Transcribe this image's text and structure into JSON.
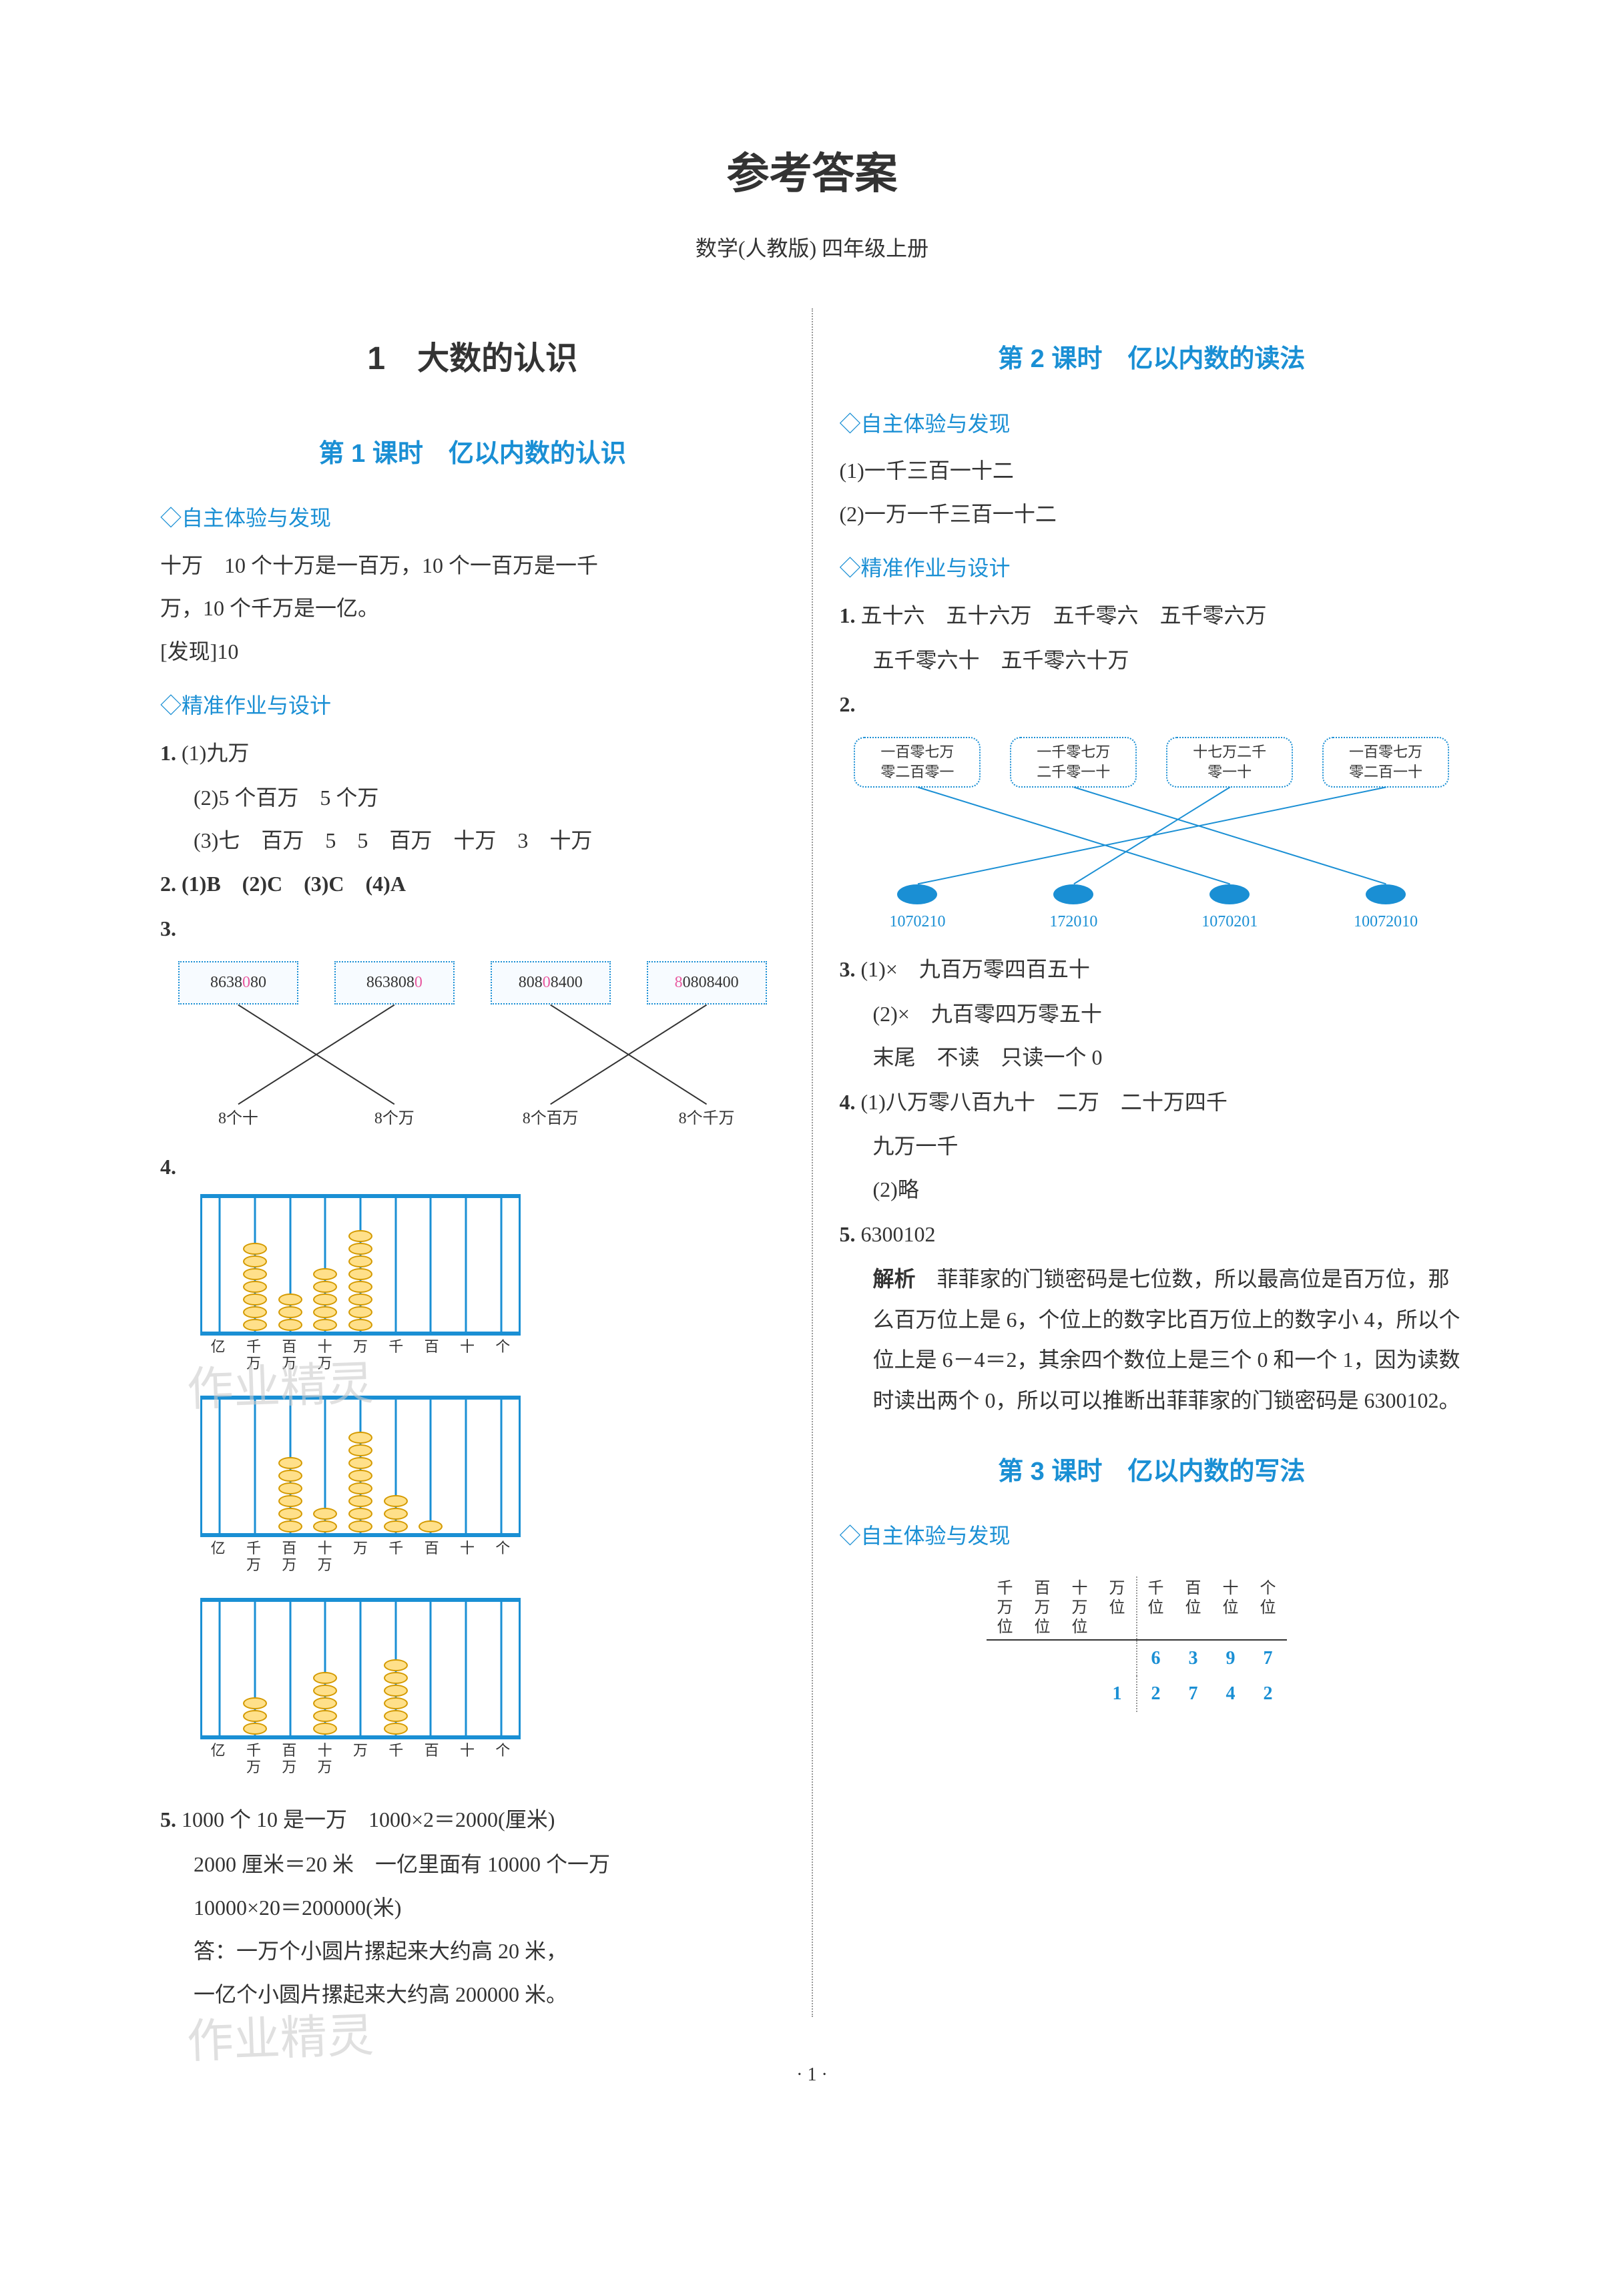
{
  "page": {
    "title": "参考答案",
    "subtitle": "数学(人教版) 四年级上册",
    "page_number": "· 1 ·",
    "watermark1": "作业精灵",
    "watermark2": "作业精灵"
  },
  "colors": {
    "accent": "#1a8fd4",
    "text": "#333333",
    "bead_fill": "#ffe08a",
    "bead_border": "#d49a00",
    "highlight": "#e85aa0",
    "watermark": "#cccccc"
  },
  "left": {
    "chapter": "1　大数的认识",
    "lesson1": {
      "title": "第 1 课时　亿以内数的认识",
      "section_a": "◇自主体验与发现",
      "a_line1": "十万　10 个十万是一百万，10 个一百万是一千",
      "a_line2": "万，10 个千万是一亿。",
      "a_finding": "[发现]10",
      "section_b": "◇精准作业与设计",
      "q1_label": "1.",
      "q1_1": "(1)九万",
      "q1_2": "(2)5 个百万　5 个万",
      "q1_3": "(3)七　百万　5　5　百万　十万　3　十万",
      "q2": "2. (1)B　(2)C　(3)C　(4)A",
      "q3_label": "3.",
      "q3_diagram": {
        "top_boxes": [
          "8638080",
          "8638080",
          "80808400",
          "80808400"
        ],
        "top_highlights": [
          [
            4
          ],
          [
            6
          ],
          [
            3
          ],
          [
            0
          ]
        ],
        "bottom_boxes": [
          "8个十",
          "8个万",
          "8个百万",
          "8个千万"
        ],
        "edges": [
          [
            0,
            1
          ],
          [
            1,
            0
          ],
          [
            2,
            3
          ],
          [
            3,
            2
          ]
        ],
        "line_color": "#333333"
      },
      "q4_label": "4.",
      "q4_abacuses": [
        {
          "beads": [
            0,
            7,
            3,
            5,
            8,
            0,
            0,
            0,
            0
          ],
          "labels": [
            "亿",
            "千万",
            "百万",
            "十万",
            "万",
            "千",
            "百",
            "十",
            "个"
          ]
        },
        {
          "beads": [
            0,
            0,
            6,
            2,
            8,
            3,
            1,
            0,
            0
          ],
          "labels": [
            "亿",
            "千万",
            "百万",
            "十万",
            "万",
            "千",
            "百",
            "十",
            "个"
          ]
        },
        {
          "beads": [
            0,
            3,
            0,
            5,
            0,
            6,
            0,
            0,
            0
          ],
          "labels": [
            "亿",
            "千万",
            "百万",
            "十万",
            "万",
            "千",
            "百",
            "十",
            "个"
          ]
        }
      ],
      "q5_label": "5.",
      "q5_line1": "1000 个 10 是一万　1000×2＝2000(厘米)",
      "q5_line2": "2000 厘米＝20 米　一亿里面有 10000 个一万",
      "q5_line3": "10000×20＝200000(米)",
      "q5_line4": "答：一万个小圆片摞起来大约高 20 米，",
      "q5_line5": "一亿个小圆片摞起来大约高 200000 米。"
    }
  },
  "right": {
    "lesson2": {
      "title": "第 2 课时　亿以内数的读法",
      "section_a": "◇自主体验与发现",
      "a_1": "(1)一千三百一十二",
      "a_2": "(2)一万一千三百一十二",
      "section_b": "◇精准作业与设计",
      "q1_label": "1.",
      "q1_line1": "五十六　五十六万　五千零六　五千零六万",
      "q1_line2": "五千零六十　五千零六十万",
      "q2_label": "2.",
      "q2_diagram": {
        "top_clouds": [
          "一百零七万\n零二百零一",
          "一千零七万\n二千零一十",
          "十七万二千\n零一十",
          "一百零七万\n零二百一十"
        ],
        "bottom_fish": [
          "1070210",
          "172010",
          "1070201",
          "10072010"
        ],
        "edges": [
          [
            0,
            2
          ],
          [
            1,
            3
          ],
          [
            2,
            1
          ],
          [
            3,
            0
          ]
        ],
        "line_color": "#1a8fd4"
      },
      "q3_label": "3.",
      "q3_1": "(1)×　九百万零四百五十",
      "q3_2": "(2)×　九百零四万零五十",
      "q3_3": "末尾　不读　只读一个 0",
      "q4_label": "4.",
      "q4_1a": "(1)八万零八百九十　二万　二十万四千",
      "q4_1b": "九万一千",
      "q4_2": "(2)略",
      "q5_label": "5.",
      "q5_answer": "6300102",
      "q5_explain_label": "解析",
      "q5_explain_body": "菲菲家的门锁密码是七位数，所以最高位是百万位，那么百万位上是 6，个位上的数字比百万位上的数字小 4，所以个位上是 6－4＝2，其余四个数位上是三个 0 和一个 1，因为读数时读出两个 0，所以可以推断出菲菲家的门锁密码是 6300102。"
    },
    "lesson3": {
      "title": "第 3 课时　亿以内数的写法",
      "section_a": "◇自主体验与发现",
      "place_table": {
        "headers_left": [
          "千万位",
          "百万位",
          "十万位",
          "万位"
        ],
        "headers_right": [
          "千位",
          "百位",
          "十位",
          "个位"
        ],
        "row1": [
          "",
          "",
          "",
          "",
          "6",
          "3",
          "9",
          "7"
        ],
        "row2": [
          "",
          "",
          "",
          "1",
          "2",
          "7",
          "4",
          "2"
        ]
      }
    }
  }
}
